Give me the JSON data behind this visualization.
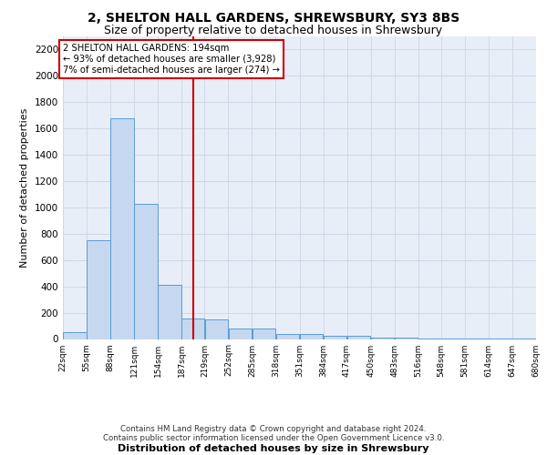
{
  "title1": "2, SHELTON HALL GARDENS, SHREWSBURY, SY3 8BS",
  "title2": "Size of property relative to detached houses in Shrewsbury",
  "xlabel": "Distribution of detached houses by size in Shrewsbury",
  "ylabel": "Number of detached properties",
  "footer1": "Contains HM Land Registry data © Crown copyright and database right 2024.",
  "footer2": "Contains public sector information licensed under the Open Government Licence v3.0.",
  "annotation_line1": "2 SHELTON HALL GARDENS: 194sqm",
  "annotation_line2": "← 93% of detached houses are smaller (3,928)",
  "annotation_line3": "7% of semi-detached houses are larger (274) →",
  "property_size": 194,
  "bin_edges": [
    22,
    55,
    88,
    121,
    154,
    187,
    219,
    252,
    285,
    318,
    351,
    384,
    417,
    450,
    483,
    516,
    548,
    581,
    614,
    647,
    680
  ],
  "bar_heights": [
    50,
    750,
    1675,
    1030,
    410,
    155,
    150,
    80,
    80,
    40,
    40,
    25,
    25,
    10,
    10,
    5,
    5,
    5,
    5,
    5
  ],
  "bar_color": "#c5d8f0",
  "bar_edge_color": "#5b9bd5",
  "vline_color": "#cc0000",
  "vline_x": 203,
  "ylim": [
    0,
    2300
  ],
  "yticks": [
    0,
    200,
    400,
    600,
    800,
    1000,
    1200,
    1400,
    1600,
    1800,
    2000,
    2200
  ],
  "grid_color": "#d0d8e8",
  "axes_background": "#e8eef8",
  "annotation_box_color": "#cc0000",
  "title_fontsize": 10,
  "subtitle_fontsize": 9,
  "ylabel_fontsize": 8,
  "tick_fontsize": 6.5,
  "footer_fontsize": 6.2,
  "xlabel_fontsize": 8,
  "tick_labels": [
    "22sqm",
    "55sqm",
    "88sqm",
    "121sqm",
    "154sqm",
    "187sqm",
    "219sqm",
    "252sqm",
    "285sqm",
    "318sqm",
    "351sqm",
    "384sqm",
    "417sqm",
    "450sqm",
    "483sqm",
    "516sqm",
    "548sqm",
    "581sqm",
    "614sqm",
    "647sqm",
    "680sqm"
  ]
}
